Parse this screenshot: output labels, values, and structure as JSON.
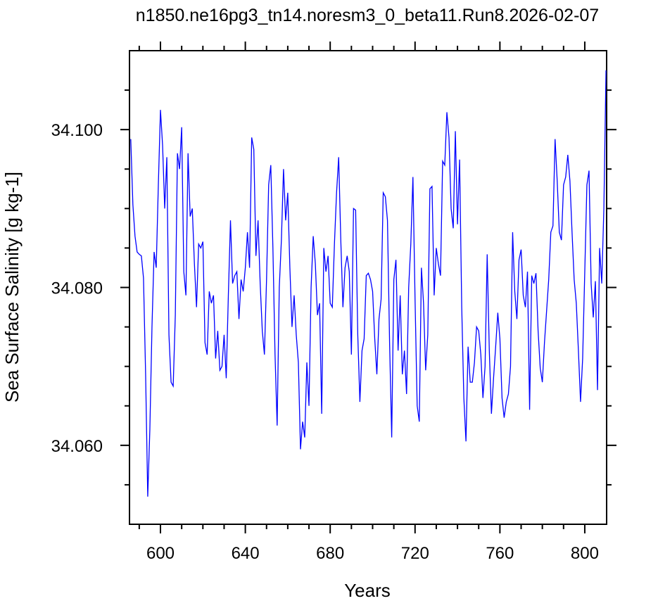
{
  "chart_data": {
    "type": "line",
    "title": "n1850.ne16pg3_tn14.noresm3_0_beta11.Run8.2026-02-07",
    "x_label": "Years",
    "y_label": "Sea Surface Salinity [g kg-1]",
    "xlim": [
      585.4,
      810.3
    ],
    "ylim": [
      34.05,
      34.11
    ],
    "xticks": [
      600,
      640,
      680,
      720,
      760,
      800
    ],
    "xminorticks": [
      590,
      610,
      620,
      630,
      650,
      660,
      670,
      690,
      700,
      710,
      730,
      740,
      750,
      770,
      780,
      790
    ],
    "yticks": [
      {
        "value": 34.06,
        "label": "34.060"
      },
      {
        "value": 34.08,
        "label": "34.080"
      },
      {
        "value": 34.1,
        "label": "34.100"
      }
    ],
    "yminorticks": [
      34.055,
      34.065,
      34.07,
      34.075,
      34.085,
      34.09,
      34.095,
      34.105
    ],
    "x": [
      586,
      587,
      588,
      589,
      590,
      591,
      592,
      593,
      594,
      595,
      596,
      597,
      598,
      599,
      600,
      601,
      602,
      603,
      604,
      605,
      606,
      607,
      608,
      609,
      610,
      611,
      612,
      613,
      614,
      615,
      616,
      617,
      618,
      619,
      620,
      621,
      622,
      623,
      624,
      625,
      626,
      627,
      628,
      629,
      630,
      631,
      632,
      633,
      634,
      635,
      636,
      637,
      638,
      639,
      640,
      641,
      642,
      643,
      644,
      645,
      646,
      647,
      648,
      649,
      650,
      651,
      652,
      653,
      654,
      655,
      656,
      657,
      658,
      659,
      660,
      661,
      662,
      663,
      664,
      665,
      666,
      667,
      668,
      669,
      670,
      671,
      672,
      673,
      674,
      675,
      676,
      677,
      678,
      679,
      680,
      681,
      682,
      683,
      684,
      685,
      686,
      687,
      688,
      689,
      690,
      691,
      692,
      693,
      694,
      695,
      696,
      697,
      698,
      699,
      700,
      701,
      702,
      703,
      704,
      705,
      706,
      707,
      708,
      709,
      710,
      711,
      712,
      713,
      714,
      715,
      716,
      717,
      718,
      719,
      720,
      721,
      722,
      723,
      724,
      725,
      726,
      727,
      728,
      729,
      730,
      731,
      732,
      733,
      734,
      735,
      736,
      737,
      738,
      739,
      740,
      741,
      742,
      743,
      744,
      745,
      746,
      747,
      748,
      749,
      750,
      751,
      752,
      753,
      754,
      755,
      756,
      757,
      758,
      759,
      760,
      761,
      762,
      763,
      764,
      765,
      766,
      767,
      768,
      769,
      770,
      771,
      772,
      773,
      774,
      775,
      776,
      777,
      778,
      779,
      780,
      781,
      782,
      783,
      784,
      785,
      786,
      787,
      788,
      789,
      790,
      791,
      792,
      793,
      794,
      795,
      796,
      797,
      798,
      799,
      800,
      801,
      802,
      803,
      804,
      805,
      806,
      807,
      808,
      809,
      810
    ],
    "series": [
      {
        "name": "Sea Surface Salinity",
        "color": "#0000ff",
        "values": [
          34.0988,
          34.0905,
          34.0865,
          34.0845,
          34.0842,
          34.084,
          34.0812,
          34.069,
          34.0535,
          34.062,
          34.075,
          34.0845,
          34.0825,
          34.093,
          34.1025,
          34.098,
          34.09,
          34.0965,
          34.074,
          34.068,
          34.0675,
          34.0765,
          34.097,
          34.095,
          34.1003,
          34.082,
          34.079,
          34.097,
          34.089,
          34.09,
          34.083,
          34.0775,
          34.0855,
          34.085,
          34.0858,
          34.073,
          34.0715,
          34.0795,
          34.078,
          34.079,
          34.071,
          34.0745,
          34.0695,
          34.07,
          34.074,
          34.0685,
          34.079,
          34.0885,
          34.0805,
          34.0815,
          34.082,
          34.076,
          34.081,
          34.0795,
          34.0825,
          34.087,
          34.0825,
          34.099,
          34.0975,
          34.084,
          34.0885,
          34.0805,
          34.0745,
          34.0715,
          34.081,
          34.093,
          34.0955,
          34.085,
          34.0715,
          34.0625,
          34.08,
          34.086,
          34.095,
          34.0885,
          34.092,
          34.0825,
          34.075,
          34.079,
          34.074,
          34.0705,
          34.0595,
          34.063,
          34.061,
          34.0705,
          34.065,
          34.08,
          34.0865,
          34.083,
          34.0765,
          34.078,
          34.064,
          34.085,
          34.082,
          34.084,
          34.078,
          34.0775,
          34.0855,
          34.092,
          34.0965,
          34.086,
          34.0775,
          34.0825,
          34.084,
          34.082,
          34.0715,
          34.09,
          34.0898,
          34.074,
          34.0655,
          34.072,
          34.0735,
          34.0815,
          34.0818,
          34.081,
          34.0795,
          34.0735,
          34.069,
          34.076,
          34.0785,
          34.092,
          34.0915,
          34.0885,
          34.073,
          34.061,
          34.081,
          34.0835,
          34.072,
          34.079,
          34.069,
          34.072,
          34.0665,
          34.08,
          34.0855,
          34.094,
          34.0785,
          34.065,
          34.063,
          34.0825,
          34.078,
          34.0695,
          34.074,
          34.0925,
          34.0928,
          34.079,
          34.085,
          34.083,
          34.0815,
          34.096,
          34.0955,
          34.1022,
          34.099,
          34.09,
          34.0875,
          34.0998,
          34.088,
          34.0962,
          34.0775,
          34.066,
          34.0605,
          34.0725,
          34.068,
          34.068,
          34.0705,
          34.075,
          34.0745,
          34.0715,
          34.066,
          34.07,
          34.0842,
          34.072,
          34.064,
          34.0685,
          34.0725,
          34.0768,
          34.0735,
          34.066,
          34.0635,
          34.0655,
          34.0665,
          34.07,
          34.087,
          34.0795,
          34.076,
          34.0835,
          34.0848,
          34.079,
          34.0775,
          34.082,
          34.0645,
          34.0815,
          34.0805,
          34.0818,
          34.0745,
          34.0698,
          34.068,
          34.073,
          34.077,
          34.081,
          34.087,
          34.0878,
          34.0988,
          34.0935,
          34.087,
          34.086,
          34.093,
          34.094,
          34.0968,
          34.0935,
          34.087,
          34.081,
          34.078,
          34.072,
          34.0655,
          34.071,
          34.082,
          34.093,
          34.0948,
          34.0805,
          34.0762,
          34.0808,
          34.067,
          34.085,
          34.0805,
          34.09,
          34.1075
        ]
      }
    ]
  }
}
